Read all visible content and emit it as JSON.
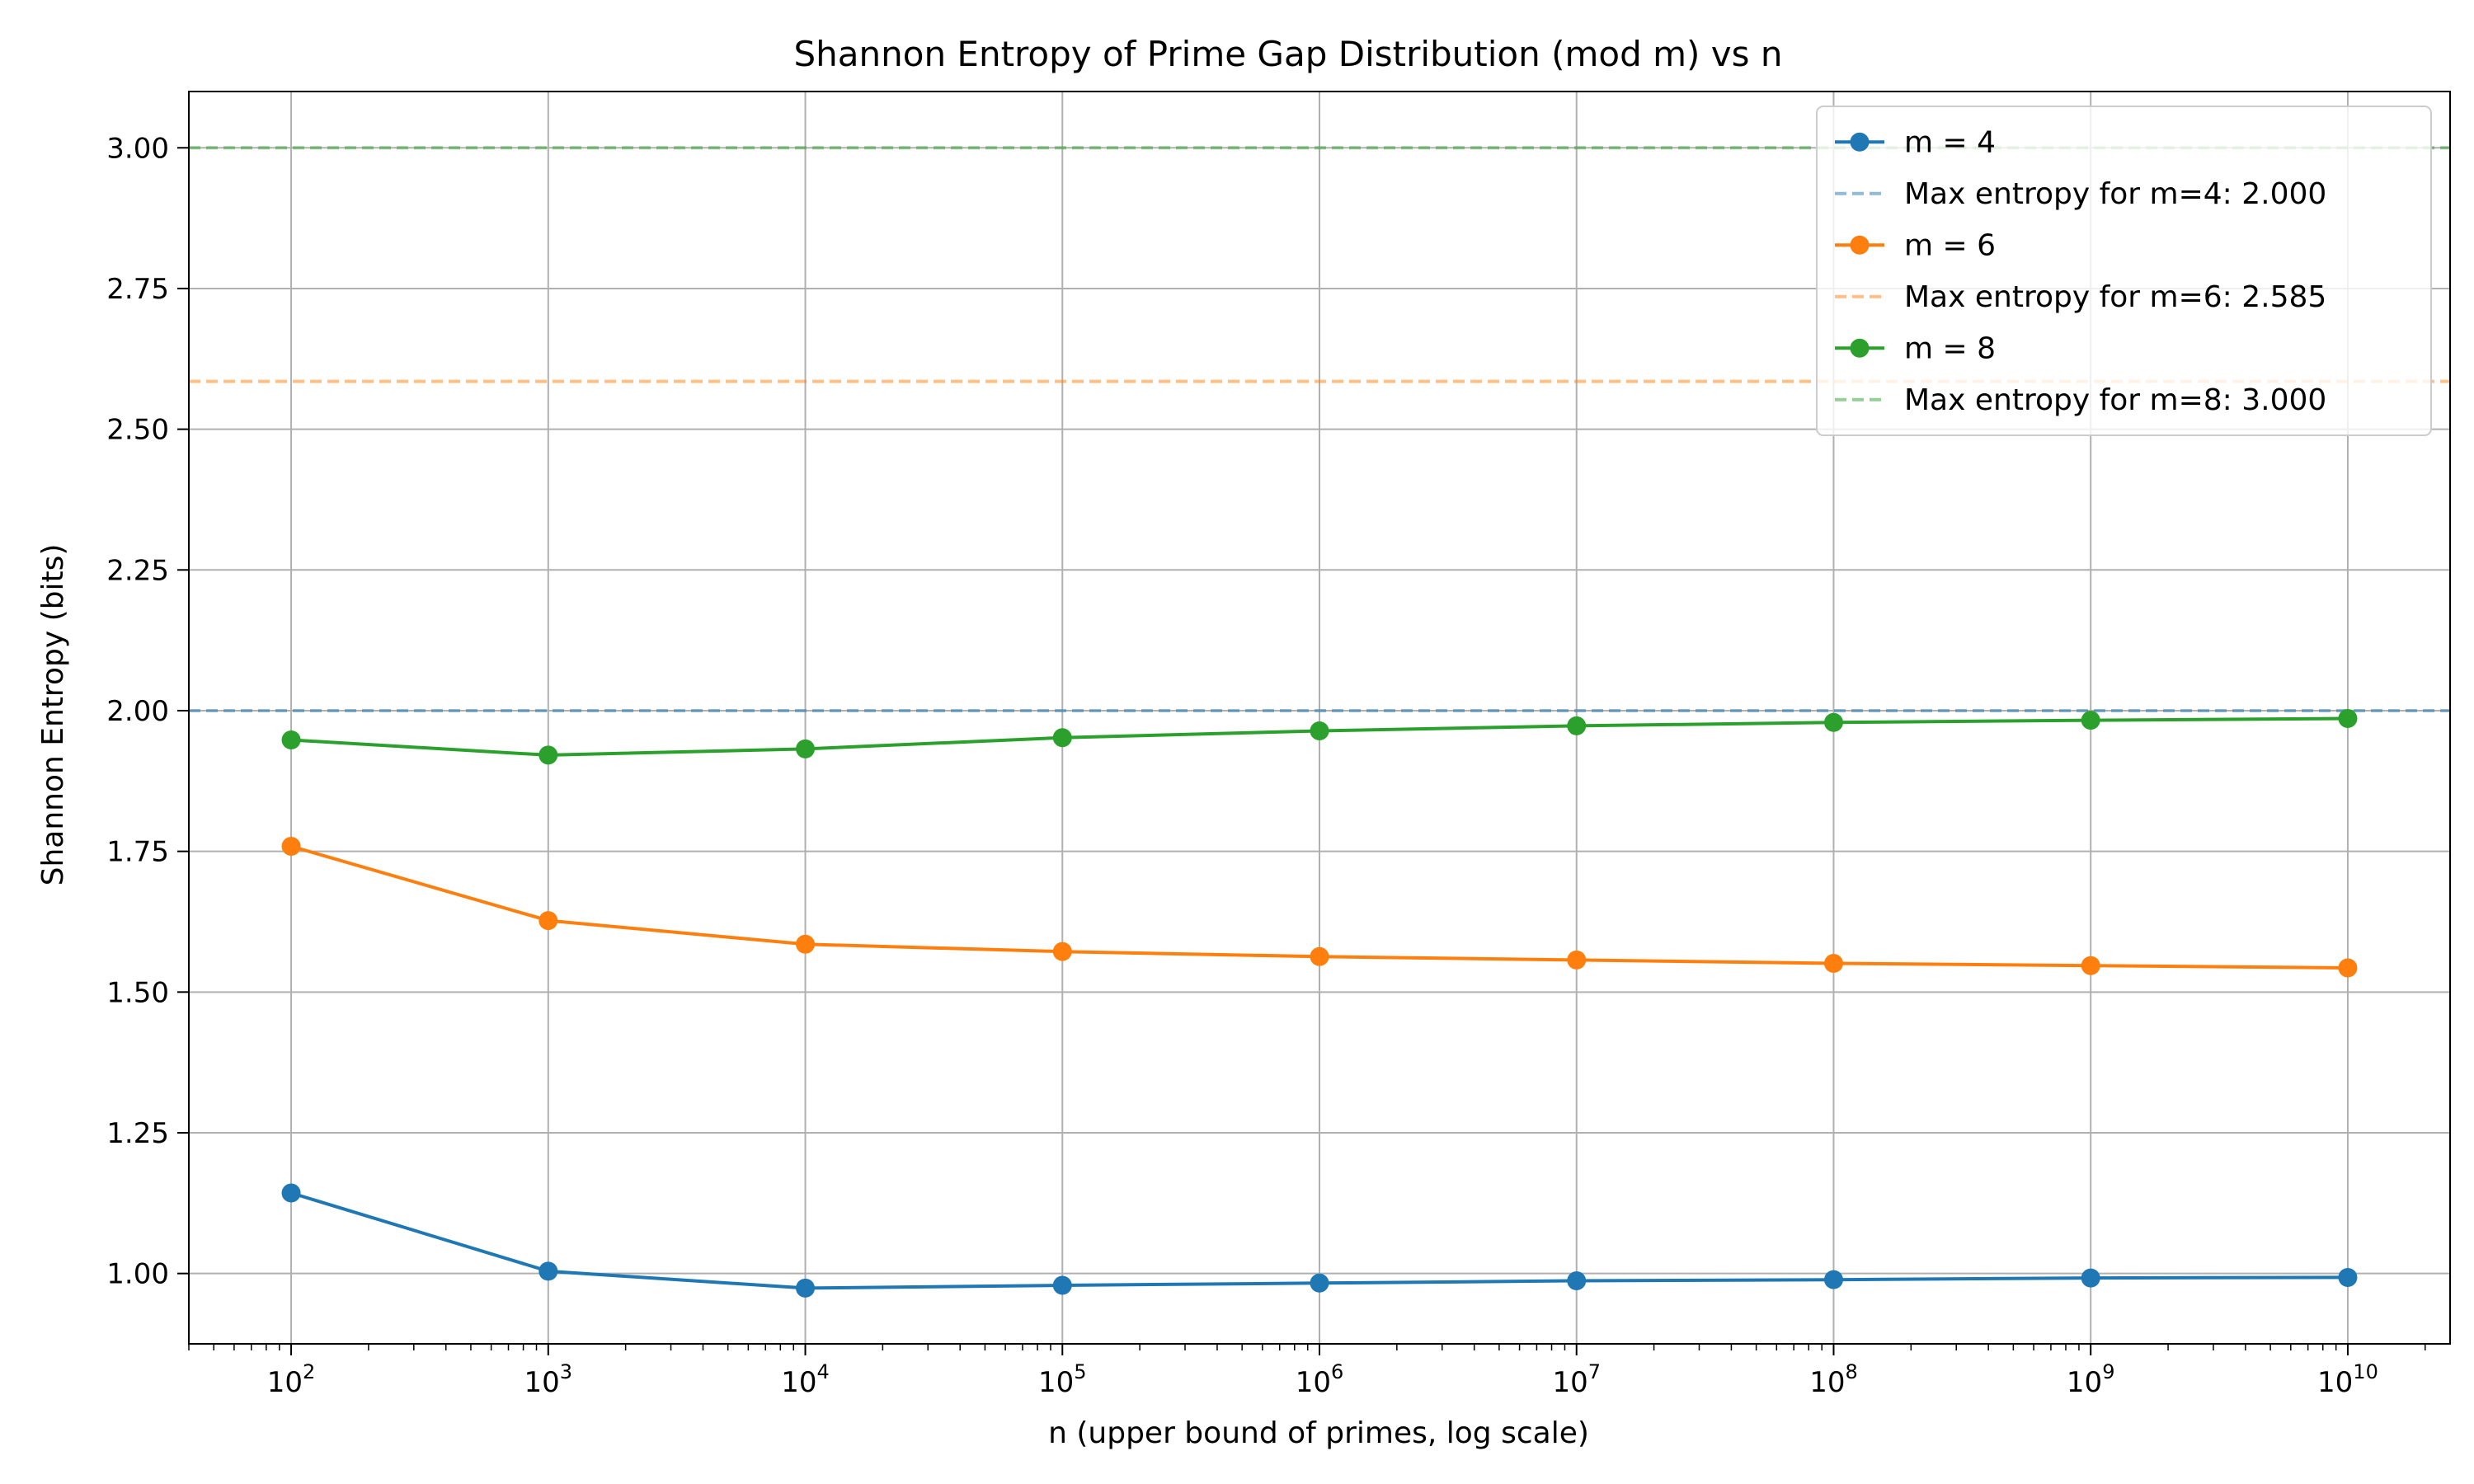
{
  "chart_data": {
    "type": "line",
    "title": "Shannon Entropy of Prime Gap Distribution (mod m) vs n",
    "xlabel": "n (upper bound of primes, log scale)",
    "ylabel": "Shannon Entropy (bits)",
    "x_scale": "log",
    "x": [
      100,
      1000,
      10000,
      100000,
      1000000,
      10000000,
      100000000,
      1000000000,
      10000000000
    ],
    "x_tick_labels": [
      {
        "base": "10",
        "exp": "2"
      },
      {
        "base": "10",
        "exp": "3"
      },
      {
        "base": "10",
        "exp": "4"
      },
      {
        "base": "10",
        "exp": "5"
      },
      {
        "base": "10",
        "exp": "6"
      },
      {
        "base": "10",
        "exp": "7"
      },
      {
        "base": "10",
        "exp": "8"
      },
      {
        "base": "10",
        "exp": "9"
      },
      {
        "base": "10",
        "exp": "10"
      }
    ],
    "xlim": [
      40,
      25000000000
    ],
    "ylim": [
      0.875,
      3.1
    ],
    "y_ticks": [
      "1.00",
      "1.25",
      "1.50",
      "1.75",
      "2.00",
      "2.25",
      "2.50",
      "2.75",
      "3.00"
    ],
    "grid": true,
    "legend_position": "top-right",
    "series": [
      {
        "name": "m = 4",
        "color": "#1f77b4",
        "style": "solid-marker",
        "values": [
          1.143,
          1.004,
          0.974,
          0.979,
          0.983,
          0.987,
          0.989,
          0.992,
          0.993
        ]
      },
      {
        "name": "Max entropy for m=4: 2.000",
        "color": "#1f77b4",
        "style": "dashed-reference",
        "value": 2.0
      },
      {
        "name": "m = 6",
        "color": "#ff7f0e",
        "style": "solid-marker",
        "values": [
          1.759,
          1.627,
          1.585,
          1.572,
          1.563,
          1.557,
          1.551,
          1.547,
          1.543
        ]
      },
      {
        "name": "Max entropy for m=6: 2.585",
        "color": "#ff7f0e",
        "style": "dashed-reference",
        "value": 2.585
      },
      {
        "name": "m = 8",
        "color": "#2ca02c",
        "style": "solid-marker",
        "values": [
          1.948,
          1.921,
          1.932,
          1.952,
          1.964,
          1.973,
          1.979,
          1.983,
          1.986
        ]
      },
      {
        "name": "Max entropy for m=8: 3.000",
        "color": "#2ca02c",
        "style": "dashed-reference",
        "value": 3.0
      }
    ]
  }
}
